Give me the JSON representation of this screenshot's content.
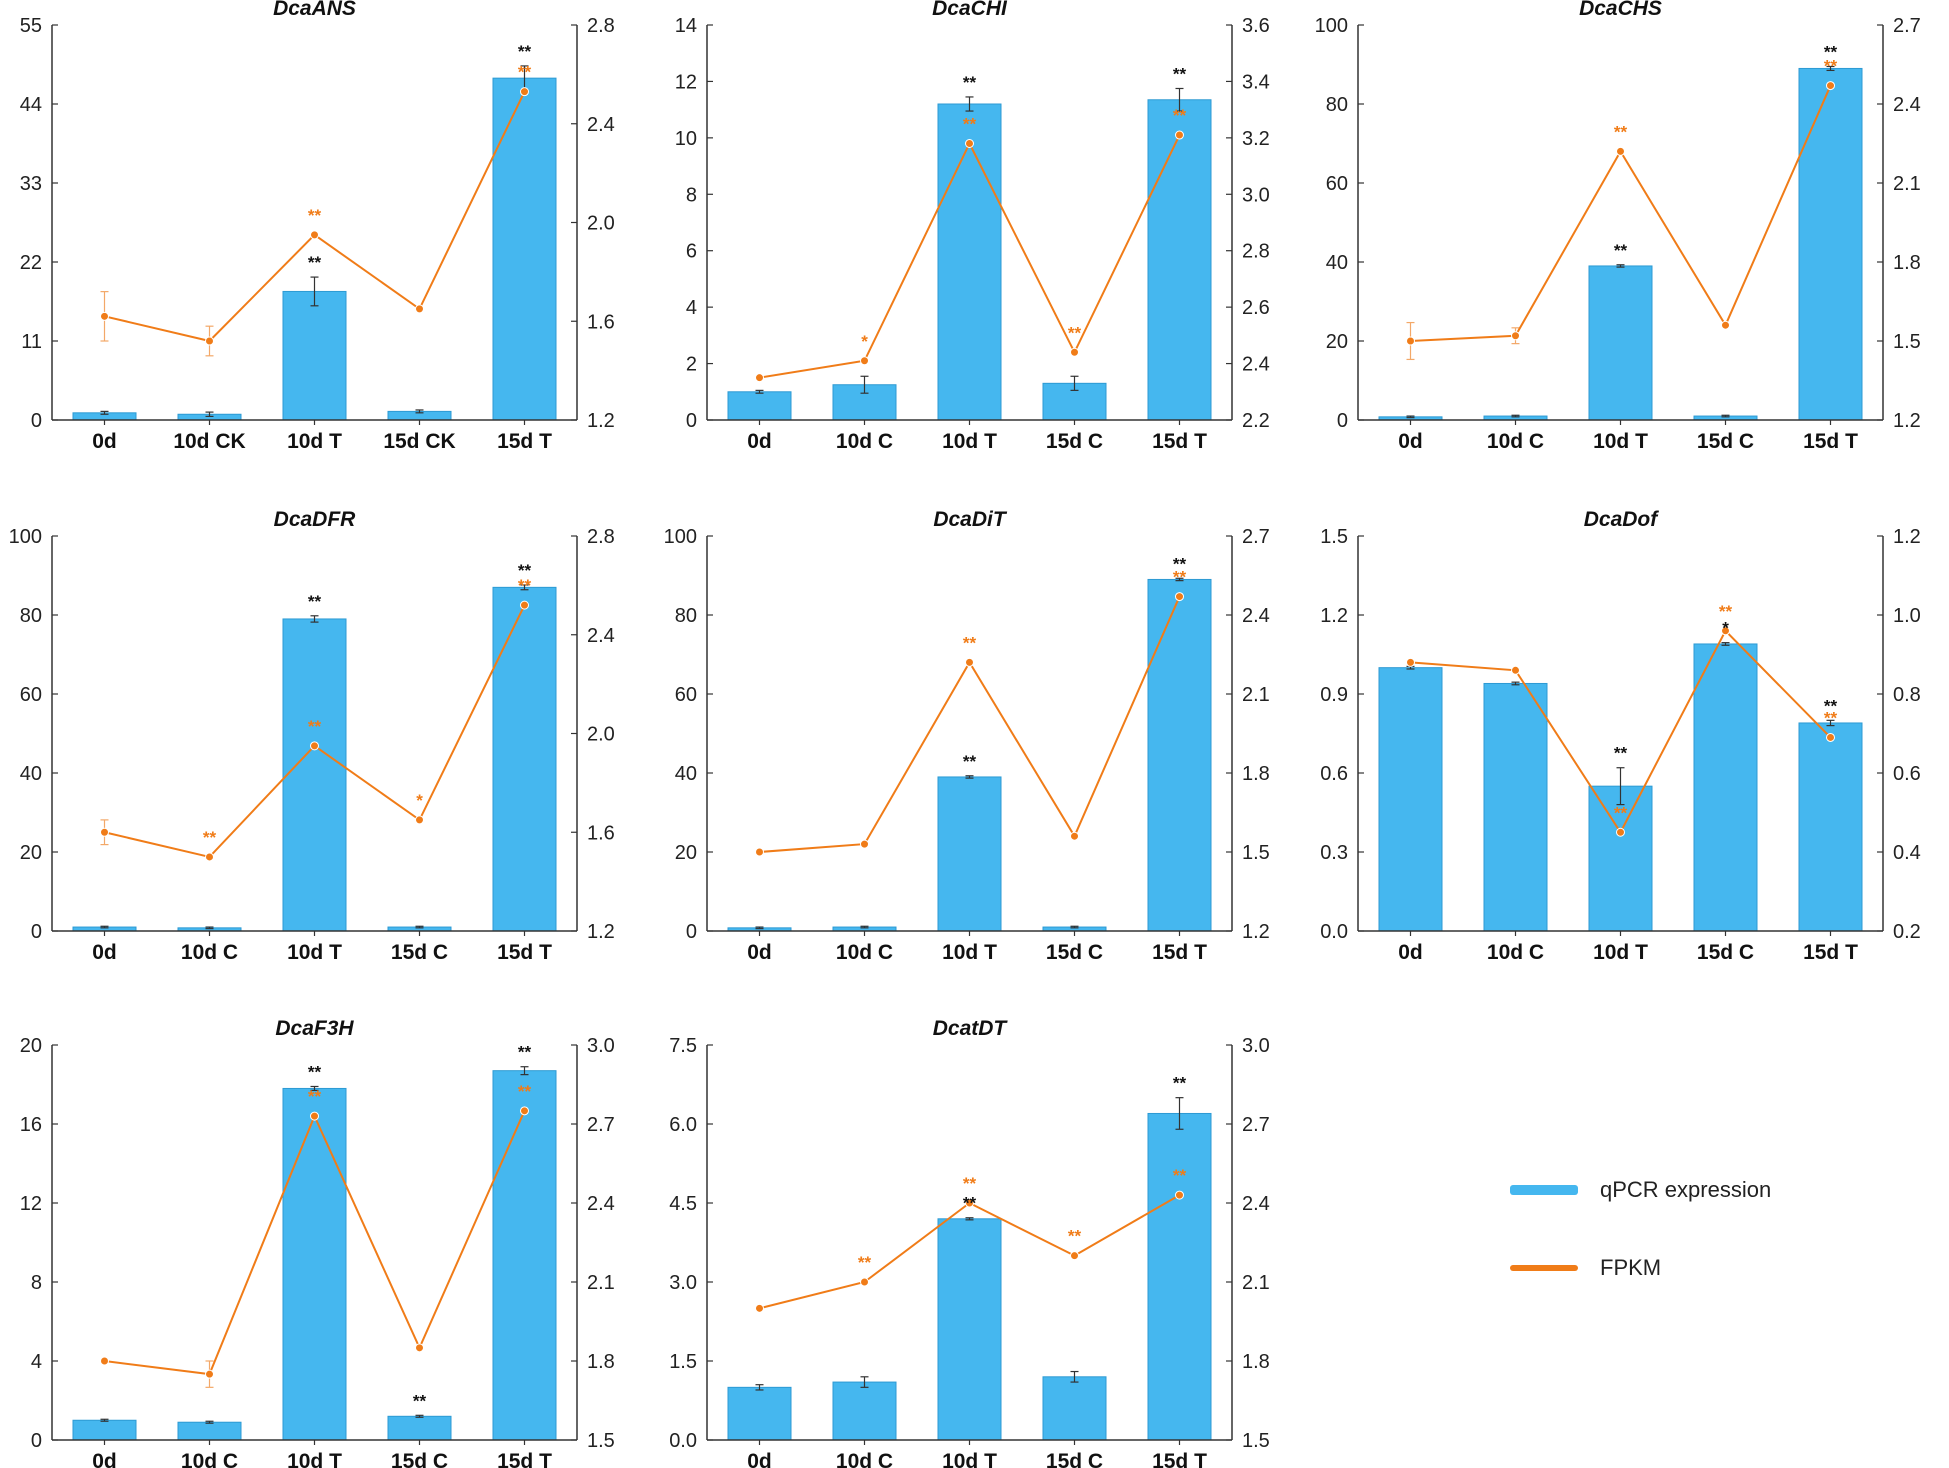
{
  "colors": {
    "bar": "#45b7ef",
    "bar_edge": "#2d9ad3",
    "line": "#f07c18",
    "axis": "#333333",
    "sig_black": "#111111",
    "sig_orange": "#f07c18"
  },
  "legend": {
    "bar_label": "qPCR expression",
    "line_label": "FPKM"
  },
  "chart_data": [
    {
      "type": "bar+line",
      "title": "DcaANS",
      "categories": [
        "0d",
        "10d CK",
        "10d T",
        "15d CK",
        "15d T"
      ],
      "bar_values": [
        1.0,
        0.8,
        17.9,
        1.2,
        47.6
      ],
      "bar_errors": [
        0.2,
        0.3,
        2.0,
        0.2,
        1.7
      ],
      "line_values": [
        1.62,
        1.52,
        1.95,
        1.65,
        2.53
      ],
      "line_errors": [
        0.1,
        0.06,
        0,
        0,
        0
      ],
      "left_ylim": [
        0,
        55
      ],
      "left_ticks": [
        "0",
        "11",
        "22",
        "33",
        "44",
        "55"
      ],
      "right_ylim": [
        1.2,
        2.8
      ],
      "right_ticks": [
        "1.2",
        "1.6",
        "2.0",
        "2.4",
        "2.8"
      ],
      "bar_sig": [
        "",
        "",
        "**",
        "",
        "**"
      ],
      "line_sig": [
        "",
        "",
        "**",
        "",
        "**"
      ]
    },
    {
      "type": "bar+line",
      "title": "DcaCHI",
      "categories": [
        "0d",
        "10d C",
        "10d T",
        "15d C",
        "15d T"
      ],
      "bar_values": [
        1.0,
        1.25,
        11.2,
        1.3,
        11.35
      ],
      "bar_errors": [
        0.05,
        0.3,
        0.25,
        0.25,
        0.4
      ],
      "line_values": [
        2.35,
        2.41,
        3.18,
        2.44,
        3.21
      ],
      "line_errors": [
        0,
        0,
        0,
        0,
        0
      ],
      "left_ylim": [
        0,
        14
      ],
      "left_ticks": [
        "0",
        "2",
        "4",
        "6",
        "8",
        "10",
        "12",
        "14"
      ],
      "right_ylim": [
        2.2,
        3.6
      ],
      "right_ticks": [
        "2.2",
        "2.4",
        "2.6",
        "2.8",
        "3.0",
        "3.2",
        "3.4",
        "3.6"
      ],
      "bar_sig": [
        "",
        "",
        "**",
        "",
        "**"
      ],
      "line_sig": [
        "",
        "*",
        "**",
        "**",
        "**"
      ]
    },
    {
      "type": "bar+line",
      "title": "DcaCHS",
      "categories": [
        "0d",
        "10d C",
        "10d T",
        "15d C",
        "15d T"
      ],
      "bar_values": [
        0.8,
        1.0,
        39,
        1.0,
        89
      ],
      "bar_errors": [
        0.2,
        0.2,
        0.3,
        0.2,
        0.5
      ],
      "line_values": [
        1.5,
        1.52,
        2.22,
        1.56,
        2.47
      ],
      "line_errors": [
        0.07,
        0.03,
        0,
        0,
        0
      ],
      "left_ylim": [
        0,
        100
      ],
      "left_ticks": [
        "0",
        "20",
        "40",
        "60",
        "80",
        "100"
      ],
      "right_ylim": [
        1.2,
        2.7
      ],
      "right_ticks": [
        "1.2",
        "1.5",
        "1.8",
        "2.1",
        "2.4",
        "2.7"
      ],
      "bar_sig": [
        "",
        "",
        "**",
        "",
        "**"
      ],
      "line_sig": [
        "",
        "",
        "**",
        "",
        "**"
      ]
    },
    {
      "type": "bar+line",
      "title": "DcaDFR",
      "categories": [
        "0d",
        "10d C",
        "10d T",
        "15d C",
        "15d T"
      ],
      "bar_values": [
        1.0,
        0.8,
        79,
        1.0,
        87
      ],
      "bar_errors": [
        0.2,
        0.2,
        0.8,
        0.2,
        0.6
      ],
      "line_values": [
        1.6,
        1.5,
        1.95,
        1.65,
        2.52
      ],
      "line_errors": [
        0.05,
        0,
        0,
        0,
        0
      ],
      "left_ylim": [
        0,
        100
      ],
      "left_ticks": [
        "0",
        "20",
        "40",
        "60",
        "80",
        "100"
      ],
      "right_ylim": [
        1.2,
        2.8
      ],
      "right_ticks": [
        "1.2",
        "1.6",
        "2.0",
        "2.4",
        "2.8"
      ],
      "bar_sig": [
        "",
        "",
        "**",
        "",
        "**"
      ],
      "line_sig": [
        "",
        "**",
        "**",
        "*",
        "**"
      ]
    },
    {
      "type": "bar+line",
      "title": "DcaDiT",
      "categories": [
        "0d",
        "10d C",
        "10d T",
        "15d C",
        "15d T"
      ],
      "bar_values": [
        0.8,
        1.0,
        39,
        1.0,
        89
      ],
      "bar_errors": [
        0.2,
        0.2,
        0.3,
        0.2,
        0.3
      ],
      "line_values": [
        1.5,
        1.53,
        2.22,
        1.56,
        2.47
      ],
      "line_errors": [
        0,
        0,
        0,
        0,
        0
      ],
      "left_ylim": [
        0,
        100
      ],
      "left_ticks": [
        "0",
        "20",
        "40",
        "60",
        "80",
        "100"
      ],
      "right_ylim": [
        1.2,
        2.7
      ],
      "right_ticks": [
        "1.2",
        "1.5",
        "1.8",
        "2.1",
        "2.4",
        "2.7"
      ],
      "bar_sig": [
        "",
        "",
        "**",
        "",
        "**"
      ],
      "line_sig": [
        "",
        "",
        "**",
        "",
        "**"
      ]
    },
    {
      "type": "bar+line",
      "title": "DcaDof",
      "categories": [
        "0d",
        "10d C",
        "10d T",
        "15d C",
        "15d T"
      ],
      "bar_values": [
        1.0,
        0.94,
        0.55,
        1.09,
        0.79
      ],
      "bar_errors": [
        0.005,
        0.005,
        0.07,
        0.005,
        0.01
      ],
      "line_values": [
        0.88,
        0.86,
        0.45,
        0.96,
        0.69
      ],
      "line_errors": [
        0,
        0,
        0,
        0,
        0
      ],
      "left_ylim": [
        0,
        1.5
      ],
      "left_ticks": [
        "0.0",
        "0.3",
        "0.6",
        "0.9",
        "1.2",
        "1.5"
      ],
      "right_ylim": [
        0.2,
        1.2
      ],
      "right_ticks": [
        "0.2",
        "0.4",
        "0.6",
        "0.8",
        "1.0",
        "1.2"
      ],
      "bar_sig": [
        "",
        "",
        "**",
        "*",
        "**"
      ],
      "line_sig": [
        "",
        "",
        "**",
        "**",
        "**"
      ]
    },
    {
      "type": "bar+line",
      "title": "DcaF3H",
      "categories": [
        "0d",
        "10d C",
        "10d T",
        "15d C",
        "15d T"
      ],
      "bar_values": [
        1.0,
        0.9,
        17.8,
        1.2,
        18.7
      ],
      "bar_errors": [
        0.05,
        0.05,
        0.1,
        0.05,
        0.2
      ],
      "line_values": [
        1.8,
        1.75,
        2.73,
        1.85,
        2.75
      ],
      "line_errors": [
        0,
        0.05,
        0,
        0,
        0
      ],
      "left_ylim": [
        0,
        20
      ],
      "left_ticks": [
        "0",
        "4",
        "8",
        "12",
        "16",
        "20"
      ],
      "right_ylim": [
        1.5,
        3.0
      ],
      "right_ticks": [
        "1.5",
        "1.8",
        "2.1",
        "2.4",
        "2.7",
        "3.0"
      ],
      "bar_sig": [
        "",
        "",
        "**",
        "**",
        "**"
      ],
      "line_sig": [
        "",
        "",
        "**",
        "",
        "**"
      ]
    },
    {
      "type": "bar+line",
      "title": "DcatDT",
      "categories": [
        "0d",
        "10d C",
        "10d T",
        "15d C",
        "15d T"
      ],
      "bar_values": [
        1.0,
        1.1,
        4.2,
        1.2,
        6.2
      ],
      "bar_errors": [
        0.05,
        0.1,
        0.02,
        0.1,
        0.3
      ],
      "line_values": [
        2.0,
        2.1,
        2.4,
        2.2,
        2.43
      ],
      "line_errors": [
        0,
        0,
        0,
        0,
        0
      ],
      "left_ylim": [
        0,
        7.5
      ],
      "left_ticks": [
        "0.0",
        "1.5",
        "3.0",
        "4.5",
        "6.0",
        "7.5"
      ],
      "right_ylim": [
        1.5,
        3.0
      ],
      "right_ticks": [
        "1.5",
        "1.8",
        "2.1",
        "2.4",
        "2.7",
        "3.0"
      ],
      "bar_sig": [
        "",
        "",
        "**",
        "",
        "**"
      ],
      "line_sig": [
        "",
        "**",
        "**",
        "**",
        "**"
      ]
    }
  ]
}
